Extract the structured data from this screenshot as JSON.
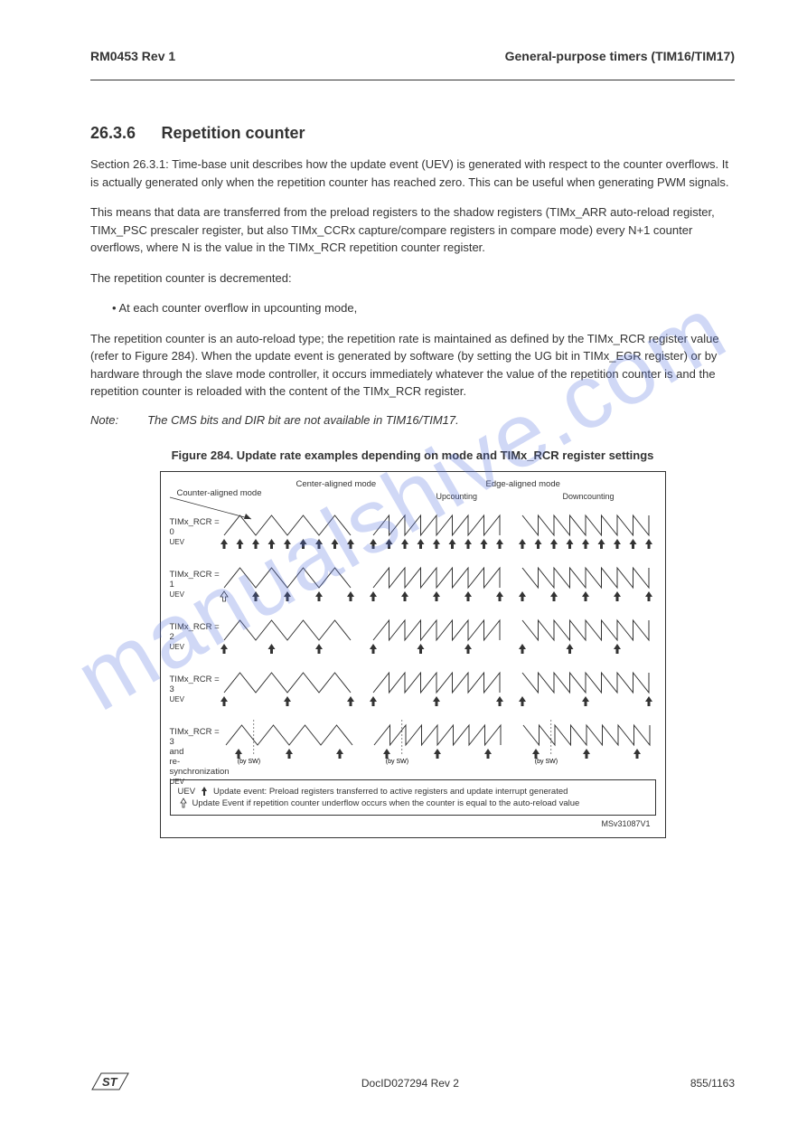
{
  "header": {
    "left": "RM0453 Rev 1",
    "right": "General-purpose timers (TIM16/TIM17)"
  },
  "section": {
    "number": "26.3.6",
    "title": "Repetition counter"
  },
  "paragraphs": {
    "p1": "Section 26.3.1: Time-base unit describes how the update event (UEV) is generated with respect to the counter overflows. It is actually generated only when the repetition counter has reached zero. This can be useful when generating PWM signals.",
    "p2": "This means that data are transferred from the preload registers to the shadow registers (TIMx_ARR auto-reload register, TIMx_PSC prescaler register, but also TIMx_CCRx capture/compare registers in compare mode) every N+1 counter overflows, where N is the value in the TIMx_RCR repetition counter register.",
    "p3": "The repetition counter is decremented:",
    "bullet": "At each counter overflow in upcounting mode,",
    "p4": "The repetition counter is an auto-reload type; the repetition rate is maintained as defined by the TIMx_RCR register value (refer to Figure 284). When the update event is generated by software (by setting the UG bit in TIMx_EGR register) or by hardware through the slave mode controller, it occurs immediately whatever the value of the repetition counter is and the repetition counter is reloaded with the content of the TIMx_RCR register."
  },
  "note": {
    "label": "Note:",
    "text": "The CMS bits and DIR bit are not available in TIM16/TIM17."
  },
  "figure": {
    "caption": "Figure 284. Update rate examples depending on mode and TIMx_RCR register settings",
    "col_heads": [
      "Center-aligned mode",
      "Edge-aligned mode"
    ],
    "sub_heads": [
      "Upcounting",
      "Downcounting"
    ],
    "counter_label": "Counter-aligned mode",
    "row_labels": [
      "TIMx_RCR = 0",
      "TIMx_RCR = 1",
      "TIMx_RCR = 2",
      "TIMx_RCR = 3",
      "TIMx_RCR = 3\nand\nre-synchronization"
    ],
    "uev_label": "UEV",
    "legend": {
      "line1": "Update event: Preload registers transferred to active registers and update interrupt generated",
      "line2": "Update Event if repetition counter underflow occurs when the counter is equal to the auto-reload value"
    },
    "sw_label": "(by SW)",
    "id_label": "MSv31087V1",
    "style": {
      "wave_stroke": "#333333",
      "arrow_fill": "#333333"
    }
  },
  "footer": {
    "mid": "DocID027294 Rev 2",
    "right": "855/1163"
  },
  "watermark": "manualshive.com"
}
